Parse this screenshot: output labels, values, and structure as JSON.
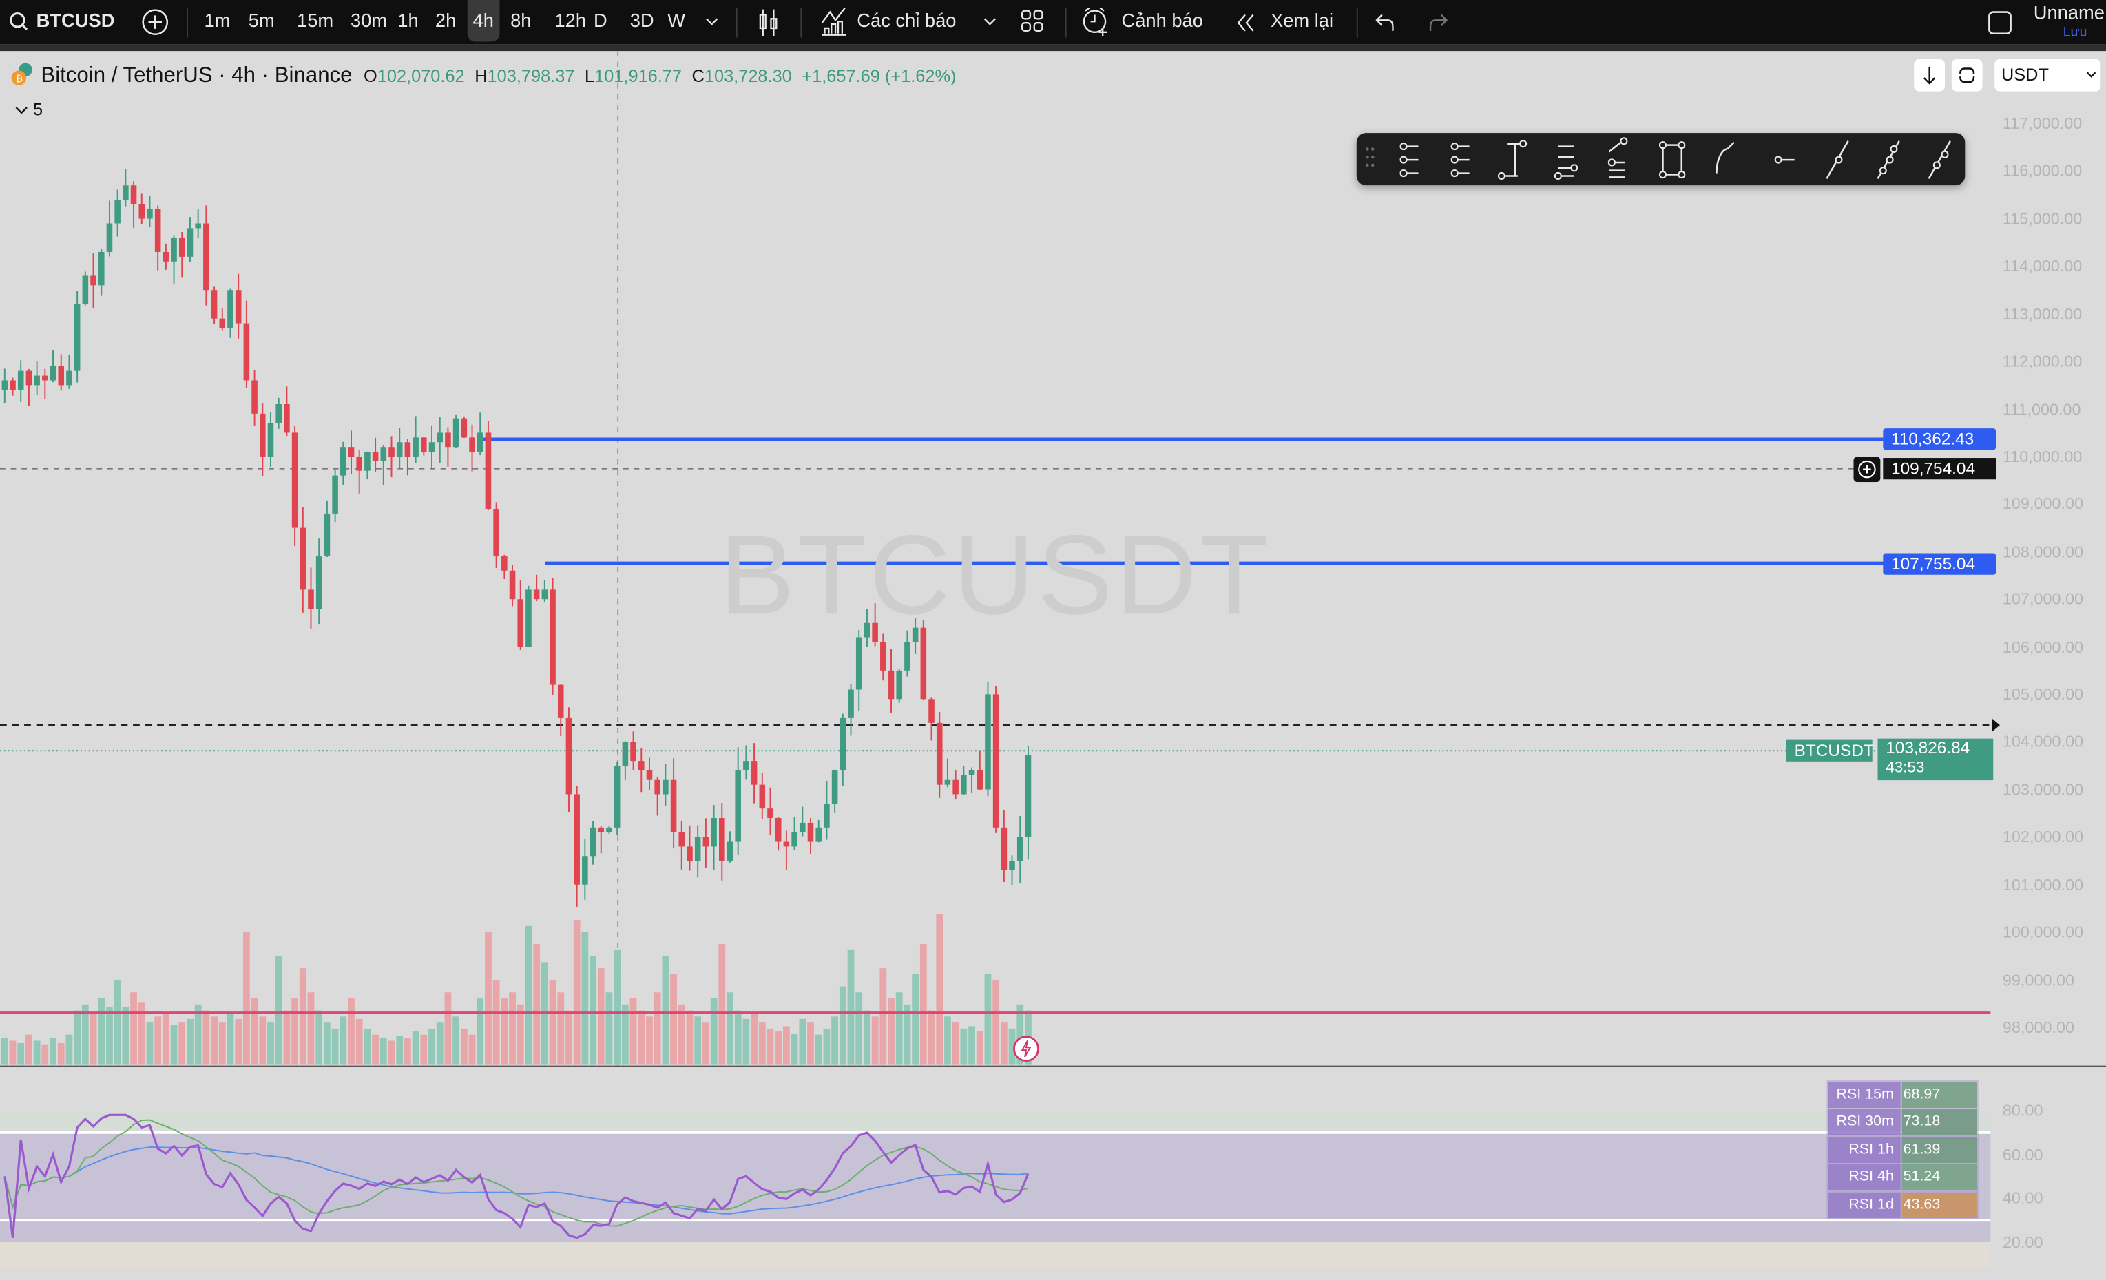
{
  "topbar": {
    "symbol": "BTCUSD",
    "timeframes": [
      "1m",
      "5m",
      "15m",
      "30m",
      "1h",
      "2h",
      "4h",
      "8h",
      "12h",
      "D",
      "3D",
      "W"
    ],
    "active_timeframe": "4h",
    "indicators_label": "Các chỉ báo",
    "alerts_label": "Cảnh báo",
    "replay_label": "Xem lại",
    "layout_name": "Unname",
    "save_label": "Lưu"
  },
  "legend": {
    "title": "Bitcoin / TetherUS · 4h · Binance",
    "o_label": "O",
    "open": "102,070.62",
    "h_label": "H",
    "high": "103,798.37",
    "l_label": "L",
    "low": "101,916.77",
    "c_label": "C",
    "close": "103,728.30",
    "change": "+1,657.69 (+1.62%)",
    "collapsed_count": "5"
  },
  "currency_select": "USDT",
  "watermark": "BTCUSDT",
  "price_axis": [
    "117,000.00",
    "116,000.00",
    "115,000.00",
    "114,000.00",
    "113,000.00",
    "112,000.00",
    "111,000.00",
    "110,000.00",
    "109,000.00",
    "108,000.00",
    "107,000.00",
    "106,000.00",
    "105,000.00",
    "104,000.00",
    "103,000.00",
    "102,000.00",
    "101,000.00",
    "100,000.00",
    "99,000.00",
    "98,000.00"
  ],
  "lines": {
    "blue_upper": "110,362.43",
    "crosshair_price": "109,754.04",
    "blue_lower": "107,755.04",
    "current_symbol": "BTCUSDT",
    "current_price": "103,826.84",
    "countdown": "43:53"
  },
  "rsi_axis": [
    "80.00",
    "60.00",
    "40.00",
    "20.00"
  ],
  "rsi_table": [
    {
      "label": "RSI 15m",
      "value": "68.97",
      "color": "#7fa58f"
    },
    {
      "label": "RSI 30m",
      "value": "73.18",
      "color": "#7a9c8a"
    },
    {
      "label": "RSI 1h",
      "value": "61.39",
      "color": "#7a9c8a"
    },
    {
      "label": "RSI 4h",
      "value": "51.24",
      "color": "#7fa58f"
    },
    {
      "label": "RSI 1d",
      "value": "43.63",
      "color": "#c9956a"
    }
  ],
  "colors": {
    "up": "#3f9c82",
    "down": "#e0454f",
    "blue_line": "#2f5cf0",
    "accent_blue": "#2962ff",
    "rsi": "#9b59d0"
  },
  "chart_data": {
    "type": "candlestick",
    "closes": [
      111600,
      111400,
      111800,
      111500,
      111700,
      111600,
      111900,
      111500,
      111800,
      113200,
      113800,
      113600,
      114300,
      114900,
      115400,
      115700,
      115300,
      115000,
      115200,
      114300,
      114100,
      114600,
      114200,
      114800,
      114900,
      113500,
      112900,
      112700,
      113500,
      112800,
      111600,
      110900,
      110000,
      110700,
      111100,
      110500,
      108500,
      107200,
      106800,
      107900,
      108800,
      109600,
      110200,
      110000,
      109700,
      110100,
      109900,
      110200,
      110000,
      110300,
      110000,
      110400,
      110100,
      110300,
      110500,
      110200,
      110800,
      110400,
      110100,
      110500,
      108900,
      107900,
      107600,
      107000,
      106000,
      107200,
      107000,
      107200,
      105200,
      104500,
      102900,
      101000,
      101600,
      102200,
      102100,
      102200,
      103500,
      104000,
      103600,
      103400,
      103200,
      102900,
      103200,
      102100,
      101800,
      101500,
      102000,
      101800,
      102400,
      101500,
      101900,
      103400,
      103600,
      103100,
      102600,
      102400,
      101900,
      101800,
      102100,
      102300,
      101900,
      102200,
      102700,
      103400,
      104500,
      105100,
      106200,
      106500,
      106100,
      105500,
      104900,
      105500,
      106100,
      106400,
      104900,
      104400,
      103100,
      103200,
      102900,
      103300,
      103400,
      103000,
      105000,
      102200,
      101300,
      101500,
      102000,
      103728
    ],
    "volumes": [
      22,
      20,
      18,
      25,
      20,
      17,
      22,
      18,
      25,
      45,
      50,
      42,
      55,
      48,
      70,
      48,
      60,
      52,
      35,
      40,
      42,
      33,
      35,
      38,
      50,
      45,
      40,
      35,
      42,
      38,
      110,
      55,
      40,
      35,
      90,
      45,
      55,
      80,
      60,
      45,
      35,
      30,
      40,
      55,
      38,
      30,
      25,
      22,
      20,
      24,
      22,
      28,
      25,
      30,
      35,
      60,
      40,
      30,
      25,
      55,
      110,
      70,
      55,
      60,
      50,
      115,
      100,
      85,
      70,
      60,
      45,
      120,
      110,
      90,
      80,
      60,
      95,
      50,
      55,
      45,
      40,
      60,
      90,
      75,
      50,
      45,
      40,
      35,
      55,
      100,
      60,
      45,
      38,
      42,
      35,
      30,
      28,
      32,
      26,
      38,
      35,
      25,
      30,
      40,
      65,
      95,
      60,
      45,
      40,
      80,
      55,
      60,
      50,
      75,
      100,
      45,
      125,
      40,
      35,
      30,
      32,
      28,
      75,
      70,
      35,
      30,
      50,
      45
    ],
    "ylim": [
      97500,
      117700
    ],
    "rsi_levels": [
      70,
      30
    ]
  }
}
